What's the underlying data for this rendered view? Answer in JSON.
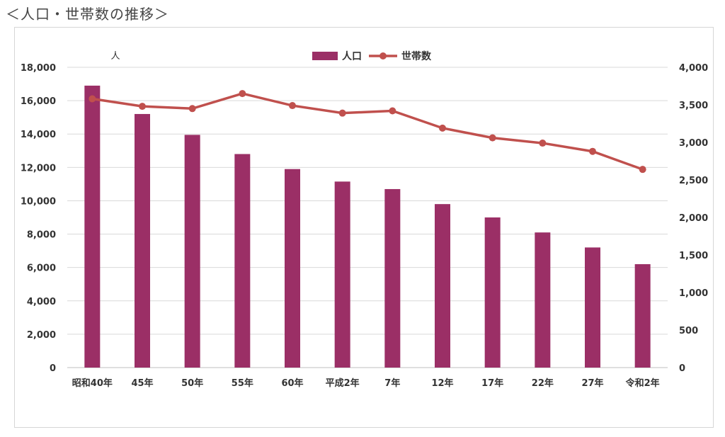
{
  "page": {
    "heading": "＜人口・世帯数の推移＞"
  },
  "chart_data": {
    "type": "bar",
    "categories": [
      "昭和40年",
      "45年",
      "50年",
      "55年",
      "60年",
      "平成2年",
      "7年",
      "12年",
      "17年",
      "22年",
      "27年",
      "令和2年"
    ],
    "series": [
      {
        "name": "人口",
        "type": "bar",
        "axis": "left",
        "color": "#9b2f66",
        "values": [
          16900,
          15200,
          13950,
          12800,
          11900,
          11150,
          10700,
          9800,
          9000,
          8100,
          7200,
          6200
        ]
      },
      {
        "name": "世帯数",
        "type": "line",
        "axis": "right",
        "color": "#c0504d",
        "values": [
          3580,
          3480,
          3450,
          3650,
          3490,
          3390,
          3420,
          3190,
          3060,
          2990,
          2880,
          2640
        ]
      }
    ],
    "y_left": {
      "unit_label": "人",
      "range": [
        0,
        18000
      ],
      "ticks": [
        "0",
        "2,000",
        "4,000",
        "6,000",
        "8,000",
        "10,000",
        "12,000",
        "14,000",
        "16,000",
        "18,000"
      ]
    },
    "y_right": {
      "range": [
        0,
        4000
      ],
      "ticks": [
        "0",
        "500",
        "1,000",
        "1,500",
        "2,000",
        "2,500",
        "3,000",
        "3,500",
        "4,000"
      ]
    },
    "legend": {
      "position": "top-center",
      "entries": [
        "人口",
        "世帯数"
      ]
    },
    "grid": true
  }
}
